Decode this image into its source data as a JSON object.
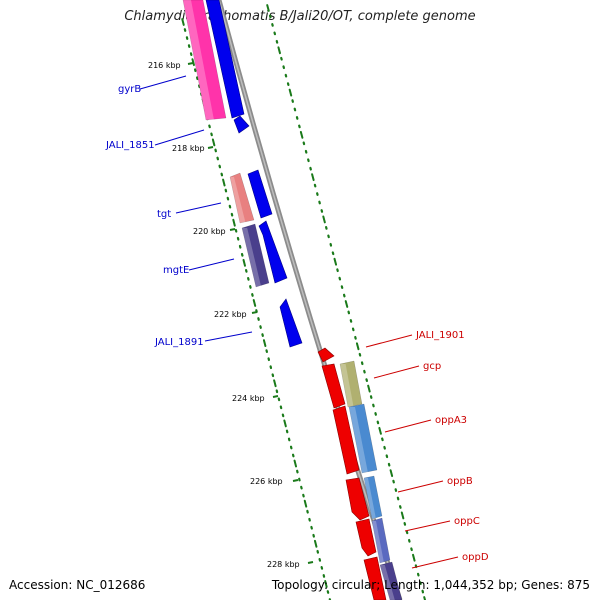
{
  "title": "Chlamydia trachomatis B/Jali20/OT, complete genome",
  "footer": {
    "accession": "Accession: NC_012686",
    "summary": "Topology: circular; Length: 1,044,352 bp; Genes: 875"
  },
  "colors": {
    "backbone": "#8c8c8c",
    "tick": "#1a7a1a",
    "left_label": "#0000cc",
    "right_label": "#cc0000"
  },
  "scale_ticks": [
    "216 kbp",
    "218 kbp",
    "220 kbp",
    "222 kbp",
    "224 kbp",
    "226 kbp",
    "228 kbp"
  ],
  "genes": [
    {
      "label": "gyrB",
      "side": "left",
      "color": "#0000ee"
    },
    {
      "label": "JALI_1851",
      "side": "left",
      "color": "#0000ee"
    },
    {
      "label": "tgt",
      "side": "left",
      "color": "#0000ee"
    },
    {
      "label": "mgtE",
      "side": "left",
      "color": "#0000ee"
    },
    {
      "label": "JALI_1891",
      "side": "left",
      "color": "#0000ee"
    },
    {
      "label": "JALI_1901",
      "side": "right",
      "color": "#ee0000"
    },
    {
      "label": "gcp",
      "side": "right",
      "color": "#ee0000"
    },
    {
      "label": "oppA3",
      "side": "right",
      "color": "#ee0000"
    },
    {
      "label": "oppB",
      "side": "right",
      "color": "#ee0000"
    },
    {
      "label": "oppC",
      "side": "right",
      "color": "#ee0000"
    },
    {
      "label": "oppD",
      "side": "right",
      "color": "#ee0000"
    }
  ],
  "cog_blocks": [
    {
      "color": "#ff33aa"
    },
    {
      "color": "#e88080"
    },
    {
      "color": "#4a3f8c"
    },
    {
      "color": "#b0b070"
    },
    {
      "color": "#4a8ad0"
    },
    {
      "color": "#4a8ad0"
    },
    {
      "color": "#5a6ac0"
    },
    {
      "color": "#4a3f8c"
    }
  ]
}
